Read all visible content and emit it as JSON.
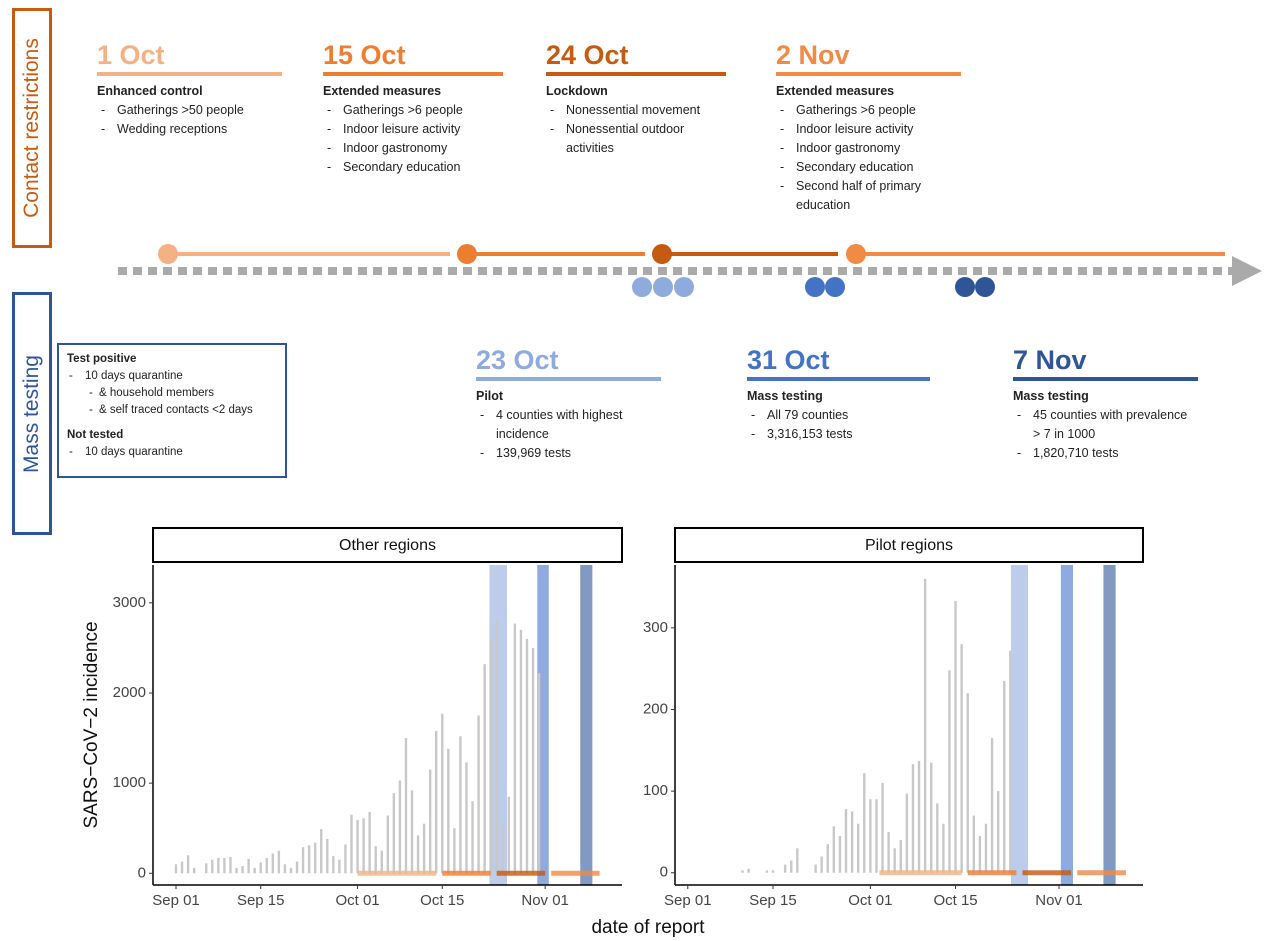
{
  "contact_restrictions": {
    "label": "Contact restrictions",
    "color": "#c55a11",
    "events": [
      {
        "date": "1 Oct",
        "color": "#f4b183",
        "title": "Enhanced control",
        "items": [
          "Gatherings >50 people",
          "Wedding receptions"
        ]
      },
      {
        "date": "15 Oct",
        "color": "#ed7d31",
        "title": "Extended measures",
        "items": [
          "Gatherings >6 people",
          "Indoor leisure activity",
          "Indoor gastronomy",
          "Secondary education"
        ]
      },
      {
        "date": "24 Oct",
        "color": "#c55a11",
        "title": "Lockdown",
        "items": [
          "Nonessential movement",
          "Nonessential outdoor activities"
        ]
      },
      {
        "date": "2 Nov",
        "color": "#f08a45",
        "title": "Extended measures",
        "items": [
          "Gatherings >6 people",
          "Indoor leisure activity",
          "Indoor gastronomy",
          "Secondary education",
          "Second half of primary education"
        ]
      }
    ]
  },
  "mass_testing": {
    "label": "Mass testing",
    "color": "#2f5597",
    "rules": [
      {
        "title": "Test positive",
        "items": [
          {
            "text": "10 days quarantine",
            "sub": [
              "& household members",
              "& self traced contacts <2 days"
            ]
          }
        ]
      },
      {
        "title": "Not tested",
        "items": [
          {
            "text": "10 days quarantine",
            "sub": []
          }
        ]
      }
    ],
    "events": [
      {
        "date": "23 Oct",
        "color": "#8faadc",
        "title": "Pilot",
        "items": [
          "4 counties with highest incidence",
          "139,969 tests"
        ]
      },
      {
        "date": "31 Oct",
        "color": "#4472c4",
        "title": "Mass testing",
        "items": [
          "All 79 counties",
          "3,316,153 tests"
        ]
      },
      {
        "date": "7 Nov",
        "color": "#2f5597",
        "title": "Mass testing",
        "items": [
          "45 counties with prevalence > 7 in 1000",
          "1,820,710 tests"
        ]
      }
    ]
  },
  "chart_data": [
    {
      "type": "bar",
      "title": "Other regions",
      "ylabel": "SARS−CoV−2 incidence",
      "xlabel": "date of report",
      "color": "#c8c8c8",
      "categories": [
        "Sep 01",
        null,
        null,
        null,
        null,
        null,
        null,
        null,
        null,
        null,
        null,
        null,
        null,
        null,
        "Sep 15",
        null,
        null,
        null,
        null,
        null,
        null,
        null,
        null,
        null,
        null,
        null,
        null,
        null,
        null,
        null,
        "Oct 01",
        null,
        null,
        null,
        null,
        null,
        null,
        null,
        null,
        null,
        null,
        null,
        null,
        null,
        "Oct 15",
        null,
        null,
        null,
        null,
        null,
        null,
        null,
        null,
        null,
        null,
        null,
        null,
        null,
        null,
        null,
        null,
        "Nov 01",
        null,
        null,
        null,
        null,
        null,
        null,
        null
      ],
      "values": [
        100,
        130,
        200,
        60,
        null,
        110,
        150,
        170,
        170,
        180,
        60,
        80,
        160,
        60,
        120,
        170,
        220,
        250,
        100,
        60,
        130,
        290,
        310,
        340,
        490,
        380,
        190,
        150,
        320,
        650,
        590,
        610,
        680,
        300,
        250,
        640,
        890,
        1030,
        1500,
        920,
        420,
        550,
        1150,
        1580,
        1770,
        1380,
        500,
        1520,
        1230,
        800,
        1750,
        2320,
        2600,
        2800,
        550,
        850,
        2770,
        2700,
        2600,
        2500,
        2220,
        null,
        null,
        null,
        null,
        null,
        null,
        null,
        null
      ],
      "xlim": [
        -3.8,
        73.7
      ],
      "ylim": [
        -130,
        3420
      ],
      "yticks": [
        0,
        1000,
        2000,
        3000
      ],
      "testing_bands": [
        {
          "start": 51.8,
          "end": 54.7,
          "color": "#8faadc"
        },
        {
          "start": 59.7,
          "end": 61.6,
          "color": "#4472c4"
        },
        {
          "start": 66.8,
          "end": 68.8,
          "color": "#2f5597"
        }
      ],
      "restriction_bands": [
        {
          "start": 30,
          "end": 43,
          "color": "#f4b183"
        },
        {
          "start": 44,
          "end": 52,
          "color": "#ed7d31"
        },
        {
          "start": 53,
          "end": 61,
          "color": "#c55a11"
        },
        {
          "start": 62,
          "end": 70,
          "color": "#f08a45"
        }
      ]
    },
    {
      "type": "bar",
      "title": "Pilot regions",
      "color": "#c8c8c8",
      "categories": [
        "Sep 01",
        null,
        null,
        null,
        null,
        null,
        null,
        null,
        null,
        null,
        null,
        null,
        null,
        null,
        "Sep 15",
        null,
        null,
        null,
        null,
        null,
        null,
        null,
        null,
        null,
        null,
        null,
        null,
        null,
        null,
        null,
        "Oct 01",
        null,
        null,
        null,
        null,
        null,
        null,
        null,
        null,
        null,
        null,
        null,
        null,
        null,
        "Oct 15",
        null,
        null,
        null,
        null,
        null,
        null,
        null,
        null,
        null,
        null,
        null,
        null,
        null,
        null,
        null,
        null,
        "Nov 01",
        null,
        null,
        null,
        null,
        null,
        null,
        null
      ],
      "values": [
        null,
        null,
        null,
        null,
        null,
        null,
        null,
        null,
        null,
        3,
        5,
        null,
        null,
        3,
        3,
        null,
        10,
        15,
        30,
        null,
        null,
        10,
        20,
        35,
        57,
        45,
        78,
        75,
        60,
        122,
        90,
        90,
        110,
        50,
        30,
        40,
        97,
        133,
        137,
        360,
        135,
        85,
        60,
        248,
        333,
        280,
        220,
        70,
        45,
        60,
        165,
        100,
        235,
        272,
        null,
        null,
        null,
        null,
        null,
        null,
        null,
        null,
        null,
        null,
        null,
        null,
        null,
        null,
        null
      ],
      "xlim": [
        -2.1,
        74.8
      ],
      "ylim": [
        -15,
        377
      ],
      "yticks": [
        0,
        100,
        200,
        300
      ],
      "testing_bands": [
        {
          "start": 53.1,
          "end": 55.9,
          "color": "#8faadc"
        },
        {
          "start": 61.3,
          "end": 63.3,
          "color": "#4472c4"
        },
        {
          "start": 68.3,
          "end": 70.3,
          "color": "#2f5597"
        }
      ],
      "restriction_bands": [
        {
          "start": 31.5,
          "end": 45,
          "color": "#f4b183"
        },
        {
          "start": 46,
          "end": 54,
          "color": "#ed7d31"
        },
        {
          "start": 55,
          "end": 63,
          "color": "#c55a11"
        },
        {
          "start": 64,
          "end": 72,
          "color": "#f08a45"
        }
      ]
    }
  ]
}
